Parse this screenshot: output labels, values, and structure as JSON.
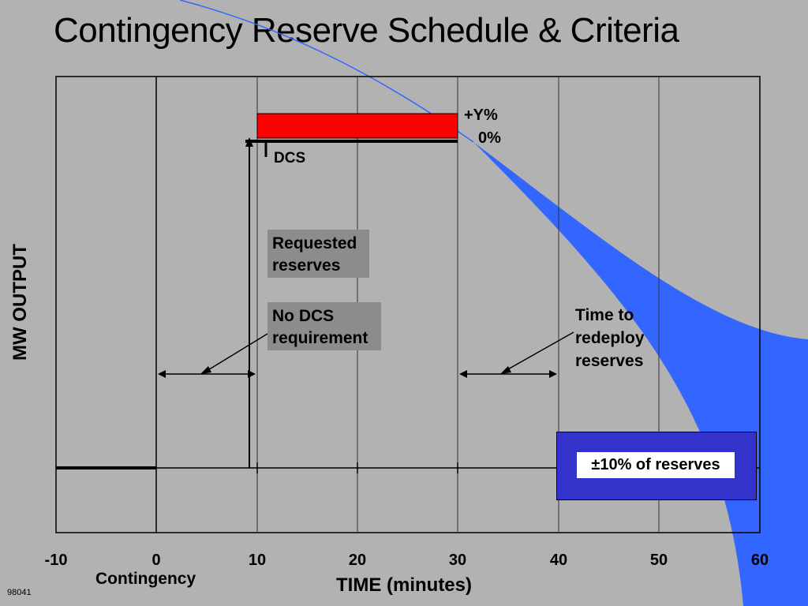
{
  "title": "Contingency Reserve Schedule & Criteria",
  "y_axis_label": "MW OUTPUT",
  "x_axis_label": "TIME (minutes)",
  "x_ticks": [
    "-10",
    "0",
    "10",
    "20",
    "30",
    "40",
    "50",
    "60"
  ],
  "contingency_label": "Contingency",
  "slide_code": "98041",
  "annotations": {
    "plus_y": "+Y%",
    "zero_pct": "0%",
    "dcs": "DCS",
    "requested_reserves_line1": "Requested",
    "requested_reserves_line2": "reserves",
    "no_dcs_line1": "No DCS",
    "no_dcs_line2": "requirement",
    "time_redeploy_line1": "Time to",
    "time_redeploy_line2": "redeploy",
    "time_redeploy_line3": "reserves",
    "legend": "±10% of reserves"
  },
  "colors": {
    "background": "#b2b2b2",
    "red_bar": "#ff0000",
    "blue_band": "#3366ff",
    "legend_box": "#3333cc"
  }
}
